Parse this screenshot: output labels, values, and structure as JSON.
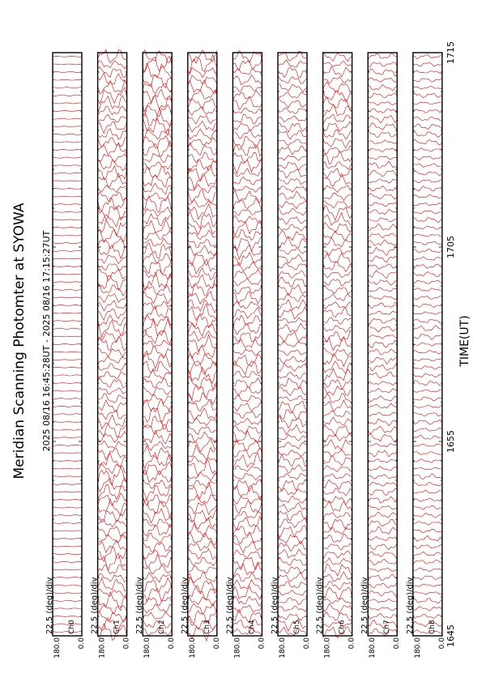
{
  "title": "Meridian Scanning Photomter at SYOWA",
  "subtitle": "2025 08/16 16:45:28UT - 2025 08/16 17:15:27UT",
  "xlabel": "TIME(UT)",
  "colors": {
    "trace": "#ee0000",
    "frame": "#000000",
    "background": "#ffffff"
  },
  "chart_data": {
    "type": "line",
    "title": "Meridian Scanning Photomter at SYOWA",
    "subtitle": "2025 08/16 16:45:28UT - 2025 08/16 17:15:27UT",
    "xlabel": "TIME(UT)",
    "x_ticks": [
      "1645",
      "1655",
      "1705",
      "1715"
    ],
    "x_range_minutes": [
      0,
      30
    ],
    "y_range_deg": [
      0.0,
      180.0
    ],
    "y_tick_labels": [
      "0.0",
      "180.0"
    ],
    "scale_label": "22.5 (deg)/div",
    "panels": [
      {
        "channel": "Ch0",
        "amplitude": 0.05,
        "regular": true
      },
      {
        "channel": "Ch1",
        "amplitude": 0.55,
        "regular": false
      },
      {
        "channel": "Ch2",
        "amplitude": 0.55,
        "regular": false
      },
      {
        "channel": "Ch3",
        "amplitude": 0.55,
        "regular": false
      },
      {
        "channel": "Ch4",
        "amplitude": 0.45,
        "regular": false
      },
      {
        "channel": "Ch5",
        "amplitude": 0.38,
        "regular": false
      },
      {
        "channel": "Ch6",
        "amplitude": 0.42,
        "regular": false
      },
      {
        "channel": "Ch7",
        "amplitude": 0.25,
        "regular": false
      },
      {
        "channel": "Ch8",
        "amplitude": 0.18,
        "regular": false
      }
    ]
  }
}
